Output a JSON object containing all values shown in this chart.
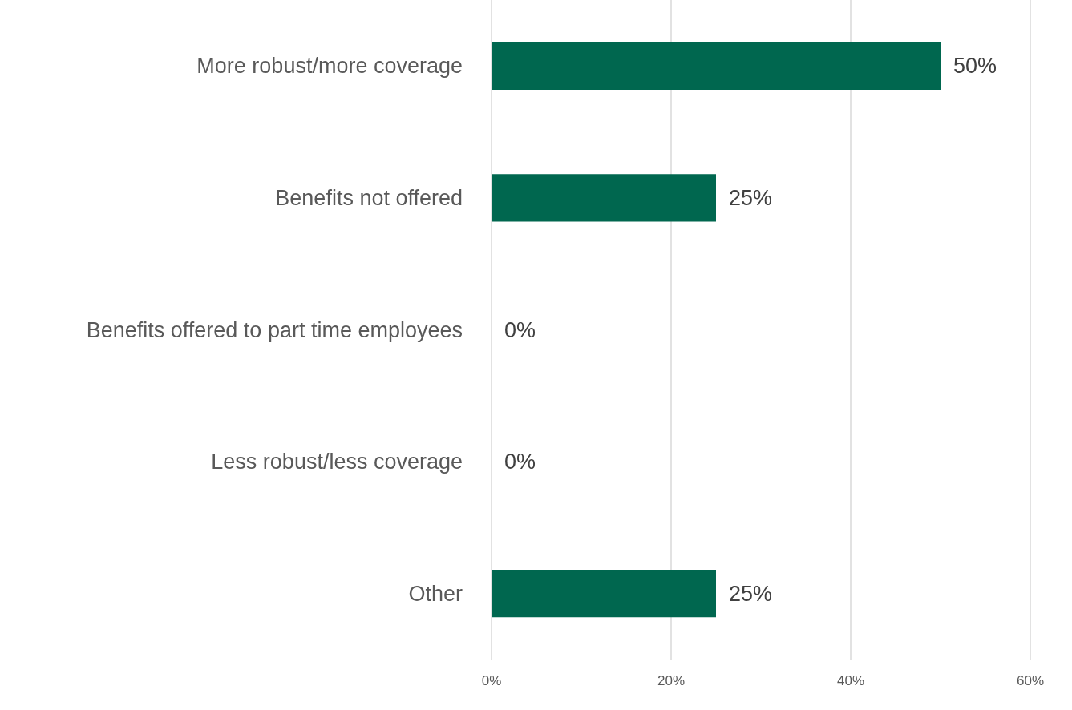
{
  "chart_data": {
    "type": "bar",
    "orientation": "horizontal",
    "categories": [
      "More robust/more coverage",
      "Benefits not offered",
      "Benefits offered to part time employees",
      "Less robust/less coverage",
      "Other"
    ],
    "values": [
      50,
      25,
      0,
      0,
      25
    ],
    "value_labels": [
      "50%",
      "25%",
      "0%",
      "0%",
      "25%"
    ],
    "color": "#00674f",
    "xlim": [
      0,
      60
    ],
    "xticks": [
      {
        "value": 0,
        "label": "0%"
      },
      {
        "value": 20,
        "label": "20%"
      },
      {
        "value": 40,
        "label": "40%"
      },
      {
        "value": 60,
        "label": "60%"
      }
    ],
    "grid": "x"
  }
}
